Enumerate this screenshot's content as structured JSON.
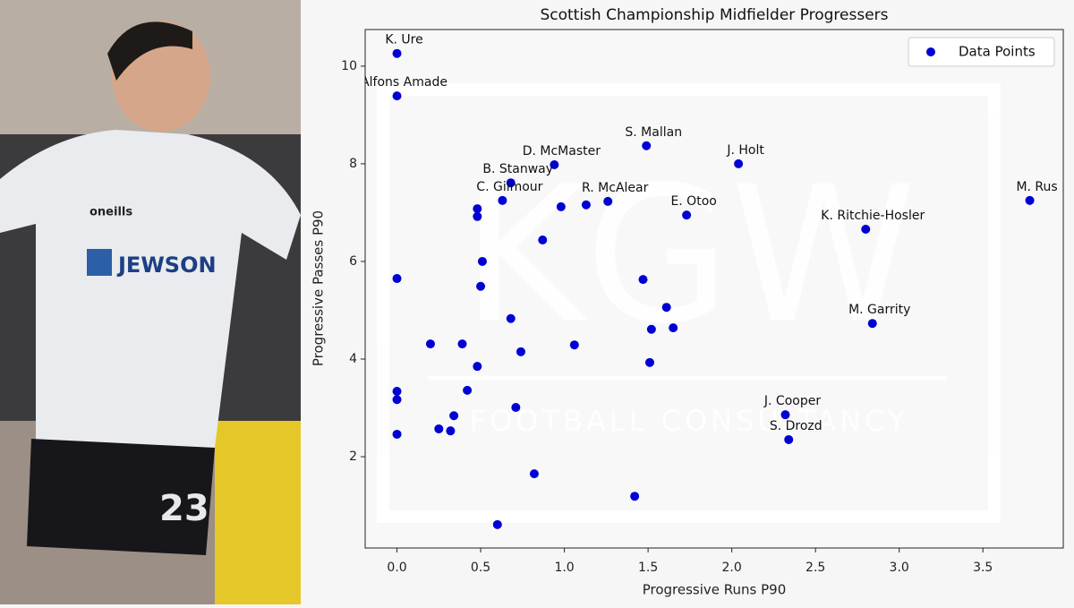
{
  "photo": {
    "texts": {
      "sponsor": "JEWSON",
      "brand": "oneills",
      "number": "23"
    }
  },
  "watermark": {
    "logo": "KGW",
    "tagline": "FOOTBALL CONSULTANCY"
  },
  "chart_data": {
    "type": "scatter",
    "title": "Scottish Championship Midfielder Progressers",
    "x_label": "Progressive Runs P90",
    "y_label": "Progressive Passes P90",
    "xlim": [
      -0.19,
      3.98
    ],
    "ylim": [
      0.13,
      10.75
    ],
    "xticks": [
      {
        "value": 0,
        "label": "0.0"
      },
      {
        "value": 0.5,
        "label": "0.5"
      },
      {
        "value": 1,
        "label": "1.0"
      },
      {
        "value": 1.5,
        "label": "1.5"
      },
      {
        "value": 2,
        "label": "2.0"
      },
      {
        "value": 2.5,
        "label": "2.5"
      },
      {
        "value": 3,
        "label": "3.0"
      },
      {
        "value": 3.5,
        "label": "3.5"
      }
    ],
    "yticks": [
      2,
      4,
      6,
      8,
      10
    ],
    "legend": "upper right",
    "series": [
      {
        "name": "Data Points",
        "color": "#0000d4",
        "x": [
          0,
          0,
          1.49,
          0.94,
          2.04,
          0.68,
          0.63,
          1.26,
          1.73,
          3.78,
          2.8,
          2.84,
          2.32,
          2.34,
          0.48,
          0.48,
          0.98,
          1.13,
          0.87,
          0.51,
          0,
          1.47,
          0.5,
          1.61,
          0.68,
          1.52,
          1.65,
          0.2,
          0.39,
          1.06,
          0.74,
          1.51,
          0.48,
          0.42,
          0,
          0,
          0.71,
          0.34,
          0.25,
          0.32,
          0,
          0.82,
          1.42,
          0.6
        ],
        "values": [
          10.26,
          9.39,
          8.37,
          7.98,
          8.0,
          7.61,
          7.25,
          7.23,
          6.95,
          7.25,
          6.66,
          4.73,
          2.86,
          2.35,
          7.08,
          6.92,
          7.12,
          7.16,
          6.44,
          6.0,
          5.65,
          5.63,
          5.49,
          5.06,
          4.83,
          4.61,
          4.64,
          4.31,
          4.31,
          4.29,
          4.15,
          3.93,
          3.85,
          3.36,
          3.34,
          3.17,
          3.01,
          2.84,
          2.57,
          2.53,
          2.46,
          1.65,
          1.19,
          0.61
        ],
        "labels": [
          "K. Ure",
          "Alfons Amade",
          "S. Mallan",
          "D. McMaster",
          "J. Holt",
          "B. Stanway",
          "C. Gilmour",
          "R. McAlear",
          "E. Otoo",
          "M. Rus",
          "K. Ritchie-Hosler",
          "M. Garrity",
          "J. Cooper",
          "S. Drozd",
          null,
          null,
          null,
          null,
          null,
          null,
          null,
          null,
          null,
          null,
          null,
          null,
          null,
          null,
          null,
          null,
          null,
          null,
          null,
          null,
          null,
          null,
          null,
          null,
          null,
          null,
          null,
          null,
          null,
          null
        ]
      }
    ]
  }
}
